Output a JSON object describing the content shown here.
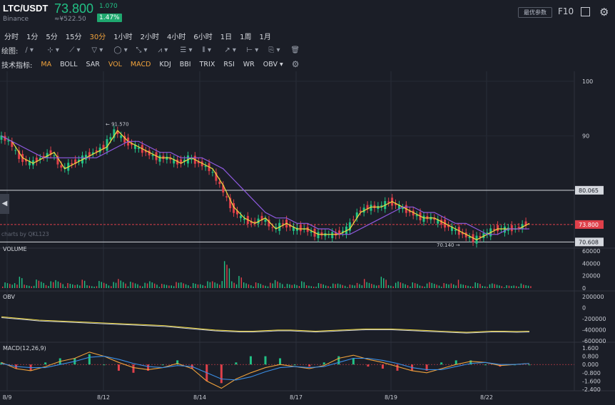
{
  "header": {
    "pair": "LTC/USDT",
    "exchange": "Binance",
    "price": "73.800",
    "change_abs": "1.070",
    "cny_price": "≈¥522.50",
    "change_pct": "1.47%",
    "optimize_label": "最优参数",
    "f10_label": "F10"
  },
  "intervals": [
    "分时",
    "1分",
    "5分",
    "15分",
    "30分",
    "1小时",
    "2小时",
    "4小时",
    "6小时",
    "1日",
    "1周",
    "1月"
  ],
  "active_interval": "30分",
  "drawing": {
    "label": "绘图:",
    "tools": [
      "line-tool-icon",
      "ray-tool-icon",
      "channel-tool-icon",
      "shape-tool-icon",
      "brush-tool-icon",
      "pattern-tool-icon",
      "fib-tool-icon",
      "gann-tool-icon",
      "arrow-tool-icon",
      "measure-tool-icon",
      "text-tool-icon",
      "clone-tool-icon",
      "delete-tool-icon"
    ]
  },
  "indicators": {
    "label": "技术指标:",
    "items": [
      "MA",
      "BOLL",
      "SAR",
      "VOL",
      "MACD",
      "KDJ",
      "BBI",
      "TRIX",
      "RSI",
      "WR",
      "OBV ▾"
    ],
    "active": [
      "MA",
      "VOL",
      "MACD"
    ]
  },
  "colors": {
    "up": "#22c185",
    "down": "#e0404a",
    "ma5": "#f0a23b",
    "ma10": "#e04c4c",
    "ma20": "#8f5ae0",
    "ma30": "#f3dc3f",
    "ma60": "#22c185",
    "macd_dif": "#f0a23b",
    "macd_dea": "#3a8ee6"
  },
  "watermark": "charts by QKL123",
  "chart_data": [
    {
      "type": "line",
      "title": "",
      "x_ticks": [
        "8/9",
        "8/12",
        "8/14",
        "8/17",
        "8/19",
        "8/22"
      ],
      "y_ticks": [
        100,
        90
      ],
      "ylim": [
        70,
        100
      ],
      "annotations": [
        {
          "label": "91.570",
          "y": 91.57
        },
        {
          "label": "70.140",
          "y": 70.14
        }
      ],
      "price_lines": [
        {
          "label": "80.065",
          "y": 80.065
        },
        {
          "label": "73.800",
          "y": 73.8
        },
        {
          "label": "70.608",
          "y": 70.608
        }
      ],
      "series": [
        {
          "name": "Price",
          "values": [
            90,
            89,
            86,
            85,
            86,
            87,
            84,
            85,
            86,
            87,
            88,
            91,
            89,
            88,
            87,
            86,
            86,
            85,
            86,
            85,
            84,
            81,
            77,
            75,
            74,
            75,
            73,
            74,
            73,
            73,
            72,
            72,
            72,
            73,
            76,
            77,
            77,
            78,
            77,
            76,
            75,
            75,
            74,
            73,
            72,
            71,
            72,
            73,
            73,
            73,
            74
          ]
        },
        {
          "name": "MA",
          "values": [
            90,
            89,
            88,
            87,
            86,
            86,
            86,
            86,
            86,
            86,
            87,
            88,
            89,
            89,
            88,
            87,
            87,
            86,
            86,
            86,
            85,
            84,
            82,
            80,
            78,
            76,
            75,
            75,
            74,
            74,
            73,
            73,
            72,
            72,
            73,
            74,
            75,
            76,
            77,
            77,
            76,
            76,
            75,
            74,
            74,
            73,
            72,
            72,
            73,
            73,
            73
          ]
        }
      ]
    },
    {
      "type": "bar",
      "title": "VOLUME",
      "y_ticks": [
        60000,
        40000,
        20000,
        0
      ],
      "ylim": [
        0,
        60000
      ],
      "values": [
        8000,
        15000,
        6000,
        12000,
        9000,
        14000,
        7000,
        11000,
        5000,
        10000,
        8000,
        16000,
        9000,
        7000,
        12000,
        6000,
        8000,
        10000,
        7000,
        9000,
        12000,
        38000,
        16000,
        10000,
        8000,
        7000,
        14000,
        6000,
        9000,
        5000,
        7000,
        6000,
        8000,
        5000,
        12000,
        9000,
        16000,
        7000,
        10000,
        8000,
        6000,
        9000,
        7000,
        11000,
        6000,
        8000,
        5000,
        7000,
        4000,
        6000,
        5000
      ]
    },
    {
      "type": "line",
      "title": "OBV",
      "y_ticks": [
        200000,
        0,
        -200000,
        -400000,
        -600000
      ],
      "ylim": [
        -600000,
        200000
      ],
      "series": [
        {
          "name": "OBV",
          "values": [
            -180000,
            -200000,
            -220000,
            -240000,
            -250000,
            -260000,
            -270000,
            -280000,
            -290000,
            -300000,
            -310000,
            -320000,
            -330000,
            -340000,
            -360000,
            -380000,
            -400000,
            -420000,
            -430000,
            -440000,
            -440000,
            -430000,
            -420000,
            -420000,
            -430000,
            -440000,
            -430000,
            -420000,
            -410000,
            -400000,
            -400000,
            -400000,
            -410000,
            -420000,
            -430000,
            -440000,
            -450000,
            -460000,
            -450000,
            -440000,
            -440000,
            -445000,
            -440000
          ]
        }
      ]
    },
    {
      "type": "line",
      "title": "MACD(12,26,9)",
      "y_ticks": [
        1.6,
        0.8,
        0,
        -0.8,
        -1.6,
        -2.4
      ],
      "ylim": [
        -2.4,
        1.6
      ],
      "series": [
        {
          "name": "DIF",
          "values": [
            0.2,
            -0.4,
            -0.6,
            -0.2,
            0.3,
            0.6,
            1.2,
            0.8,
            0.2,
            -0.3,
            -0.5,
            -0.3,
            0.1,
            -0.4,
            -1.6,
            -2.3,
            -1.4,
            -0.8,
            -0.3,
            0.0,
            -0.2,
            -0.4,
            -0.1,
            0.6,
            0.9,
            0.5,
            0.2,
            -0.2,
            -0.6,
            -0.8,
            -0.4,
            0.0,
            0.3,
            0.2,
            -0.1,
            0.0,
            0.1
          ]
        },
        {
          "name": "DEA",
          "values": [
            0.1,
            -0.2,
            -0.3,
            -0.3,
            0.0,
            0.3,
            0.7,
            0.8,
            0.5,
            0.1,
            -0.2,
            -0.3,
            -0.1,
            -0.2,
            -0.8,
            -1.4,
            -1.5,
            -1.2,
            -0.7,
            -0.3,
            -0.2,
            -0.3,
            -0.2,
            0.2,
            0.6,
            0.6,
            0.4,
            0.1,
            -0.3,
            -0.5,
            -0.5,
            -0.2,
            0.1,
            0.2,
            0.0,
            0.0,
            0.1
          ]
        }
      ]
    }
  ]
}
